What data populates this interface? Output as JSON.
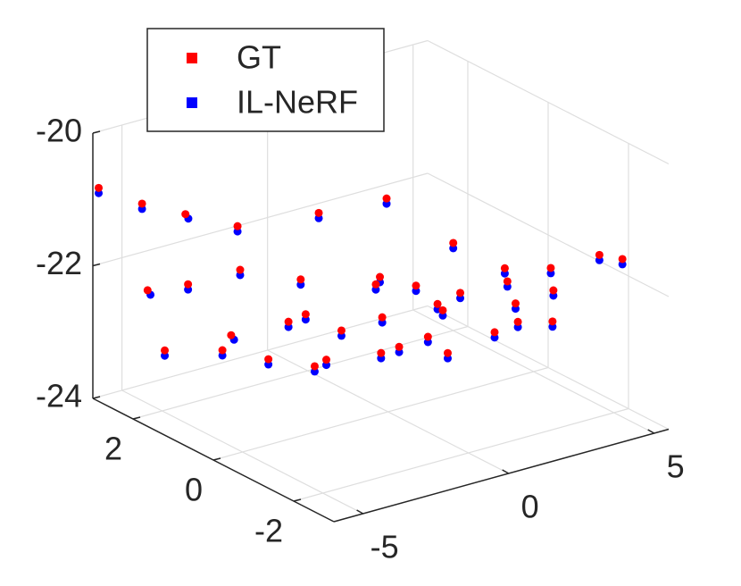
{
  "chart_data": {
    "type": "scatter3d",
    "xlim": [
      -6,
      5.5
    ],
    "ylim": [
      -3,
      3
    ],
    "zlim": [
      -24,
      -20
    ],
    "xticks": [
      -5,
      0,
      5
    ],
    "yticks": [
      -2,
      0,
      2
    ],
    "zticks": [
      -24,
      -22,
      -20
    ],
    "grid": true,
    "legend": "upper-left",
    "series": [
      {
        "name": "GT",
        "color": "#ff0000",
        "x": [
          -5.8,
          -5,
          -4.2,
          -3.1,
          -1,
          3.4,
          -5.5,
          -4.8,
          -3.7,
          -3,
          -5.6,
          -4.7,
          -5,
          -4.8,
          -4.8,
          -4.9,
          -3.9,
          -3.5,
          -1.6,
          -1.8,
          1.1,
          -0.2,
          -3,
          -1,
          -1.8,
          -0.7,
          1.7,
          0.5,
          -1.4,
          5,
          1.1,
          0.9,
          4.7,
          4.1,
          3,
          1.7,
          4.9,
          4.3,
          2.2,
          4.5,
          4.6
        ],
        "y": [
          3,
          2.5,
          2,
          1.5,
          1,
          2.5,
          2,
          1.5,
          1,
          0,
          1.5,
          0.5,
          0.5,
          -0.5,
          -1,
          -1.5,
          -1,
          -1,
          0,
          -1,
          1,
          0,
          -2,
          -1,
          -2,
          -1.5,
          0,
          -1,
          -2.5,
          2,
          -1,
          -2,
          0.5,
          0,
          -1,
          -2,
          -0.5,
          -1,
          -2.5,
          -2,
          -2.5
        ],
        "z": [
          -20.85,
          -21.03,
          -21.13,
          -21.29,
          -21.19,
          -21.97,
          -22.12,
          -21.96,
          -21.72,
          -21.64,
          -22.86,
          -22.43,
          -22.62,
          -22.47,
          -21.75,
          -21.47,
          -22.53,
          -22.48,
          -22.58,
          -21.55,
          -22.41,
          -22.55,
          -22.13,
          -22.59,
          -21.26,
          -22.32,
          -22.58,
          -22.22,
          -22.17,
          -22.68,
          -22.03,
          -22.29,
          -22.56,
          -22.53,
          -22.42,
          -22.23,
          -22.27,
          -22.38,
          -22.13,
          -21.56,
          -21.48
        ]
      },
      {
        "name": "IL-NeRF",
        "color": "#0000ff",
        "x": [
          -5.8,
          -5,
          -4.1,
          -3.1,
          -1,
          3.4,
          -5.4,
          -4.8,
          -3.7,
          -3,
          -5.6,
          -4.6,
          -5,
          -4.8,
          -4.8,
          -4.9,
          -3.9,
          -3.5,
          -1.6,
          -1.8,
          1.1,
          -0.2,
          -3,
          -1,
          -1.8,
          -0.7,
          1.7,
          0.5,
          -1.4,
          5,
          1.1,
          0.9,
          4.7,
          4.1,
          3,
          1.7,
          4.9,
          4.3,
          2.2,
          4.5,
          4.6
        ],
        "y": [
          3,
          2.5,
          2,
          1.5,
          1,
          2.5,
          2,
          1.5,
          1,
          0,
          1.5,
          0.5,
          0.5,
          -0.5,
          -1,
          -1.5,
          -1,
          -1,
          0,
          -1,
          1,
          0,
          -2,
          -1,
          -2,
          -1.5,
          0,
          -1,
          -2.5,
          2,
          -1,
          -2,
          0.5,
          0,
          -1,
          -2,
          -0.5,
          -1,
          -2.5,
          -2,
          -2.5
        ],
        "z": [
          -20.93,
          -21.11,
          -21.21,
          -21.37,
          -21.27,
          -22.05,
          -22.2,
          -22.04,
          -21.8,
          -21.72,
          -22.94,
          -22.51,
          -22.7,
          -22.55,
          -21.83,
          -21.55,
          -22.61,
          -22.56,
          -22.66,
          -21.63,
          -22.49,
          -22.63,
          -22.21,
          -22.67,
          -21.34,
          -22.4,
          -22.66,
          -22.3,
          -22.25,
          -22.76,
          -22.11,
          -22.37,
          -22.64,
          -22.61,
          -22.5,
          -22.31,
          -22.35,
          -22.46,
          -22.21,
          -21.64,
          -21.56
        ]
      }
    ]
  }
}
